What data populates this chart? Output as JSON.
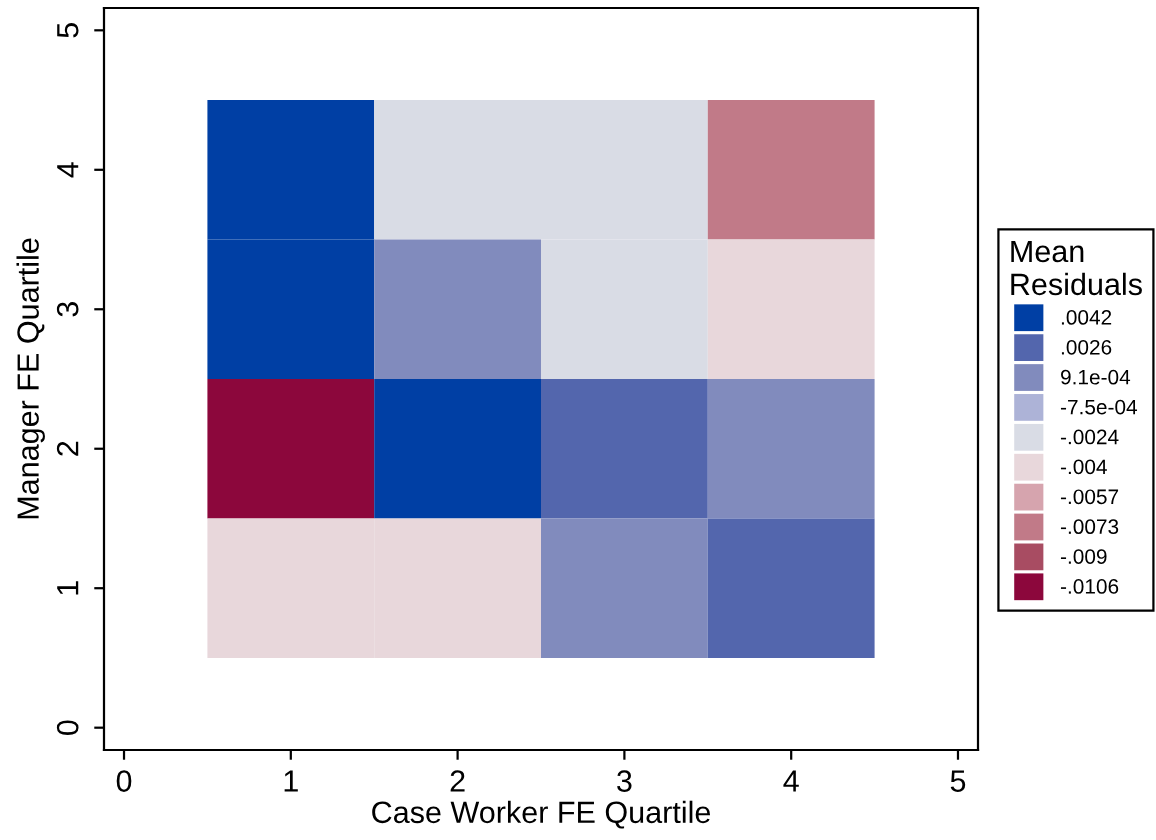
{
  "chart_data": {
    "type": "heatmap",
    "xlabel": "Case Worker FE Quartile",
    "ylabel": "Manager FE Quartile",
    "legend_title": "Mean Residuals",
    "x": [
      1,
      2,
      3,
      4
    ],
    "y": [
      4,
      3,
      2,
      1
    ],
    "cells": [
      [
        0.0042,
        -0.0024,
        -0.0024,
        -0.0073
      ],
      [
        0.0042,
        0.00091,
        -0.0024,
        -0.004
      ],
      [
        -0.0106,
        0.0042,
        0.0026,
        0.00091
      ],
      [
        -0.004,
        -0.004,
        0.00091,
        0.0026
      ]
    ],
    "cticks": [
      {
        "value": 0.0042,
        "label": ".0042"
      },
      {
        "value": 0.0026,
        "label": ".0026"
      },
      {
        "value": 0.00091,
        "label": "9.1e-04"
      },
      {
        "value": -0.00075,
        "label": "-7.5e-04"
      },
      {
        "value": -0.0024,
        "label": "-.0024"
      },
      {
        "value": -0.004,
        "label": "-.004"
      },
      {
        "value": -0.0057,
        "label": "-.0057"
      },
      {
        "value": -0.0073,
        "label": "-.0073"
      },
      {
        "value": -0.009,
        "label": "-.009"
      },
      {
        "value": -0.0106,
        "label": "-.0106"
      }
    ],
    "colors": [
      "#003fa4",
      "#5366ad",
      "#818bbd",
      "#adb3d7",
      "#d9dce5",
      "#e8d7db",
      "#d6a4ae",
      "#c17a88",
      "#a84c62",
      "#8c073c"
    ],
    "xlim": [
      -0.12,
      5.12
    ],
    "ylim": [
      -0.16,
      5.16
    ],
    "xticks": [
      0,
      1,
      2,
      3,
      4,
      5
    ],
    "yticks": [
      0,
      1,
      2,
      3,
      4,
      5
    ],
    "grid": false
  }
}
